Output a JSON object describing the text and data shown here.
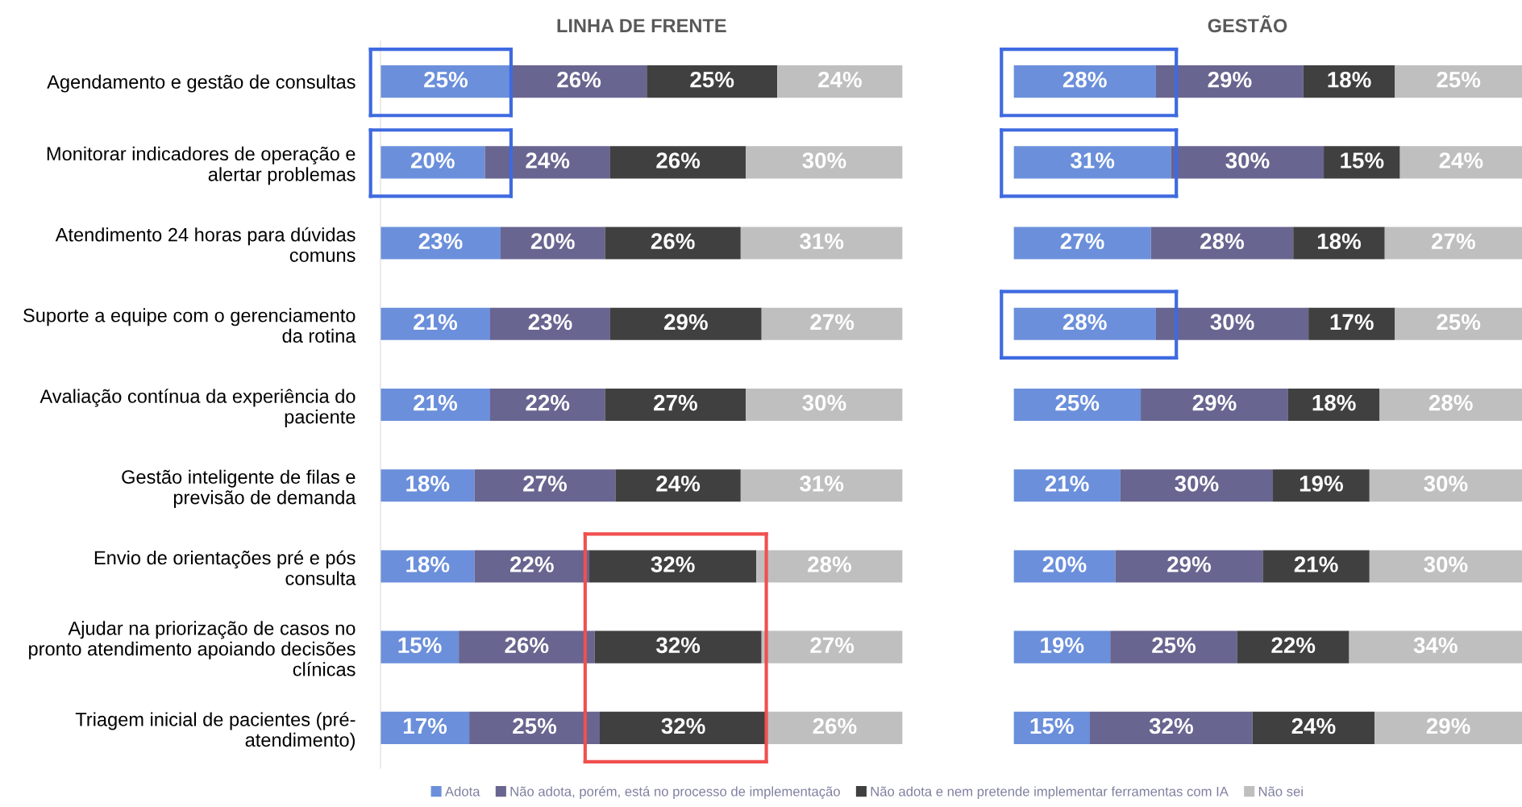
{
  "chart_data": [
    {
      "type": "bar",
      "orientation": "horizontal",
      "stacked": true,
      "title": "LINHA DE FRENTE",
      "xlim": [
        0,
        100
      ],
      "tick_labels": "y",
      "legend": "bottom",
      "grid": false,
      "categories": [
        "Agendamento e gestão de consultas",
        "Monitorar indicadores de operação e alertar problemas",
        "Atendimento 24 horas para dúvidas comuns",
        "Suporte a equipe com o gerenciamento da rotina",
        "Avaliação contínua da experiência do paciente",
        "Gestão inteligente de filas e previsão de demanda",
        "Envio de orientações pré e pós consulta",
        "Ajudar na priorização de casos no pronto atendimento apoiando decisões clínicas",
        "Triagem inicial de pacientes (pré-atendimento)"
      ],
      "series": [
        {
          "name": "Adota",
          "color": "#6b8fdb",
          "values": [
            25,
            20,
            23,
            21,
            21,
            18,
            18,
            15,
            17
          ],
          "value_labels": [
            "25%",
            "20%",
            "23%",
            "21%",
            "21%",
            "18%",
            "18%",
            "15%",
            "17%"
          ]
        },
        {
          "name": "Não adota, porém, está no processo de implementação",
          "color": "#686590",
          "values": [
            26,
            24,
            20,
            23,
            22,
            27,
            22,
            26,
            25
          ],
          "value_labels": [
            "26%",
            "24%",
            "20%",
            "23%",
            "22%",
            "27%",
            "22%",
            "26%",
            "25%"
          ]
        },
        {
          "name": "Não adota e nem pretende implementar ferramentas com IA",
          "color": "#404040",
          "values": [
            25,
            26,
            26,
            29,
            27,
            24,
            32,
            32,
            32
          ],
          "value_labels": [
            "25%",
            "26%",
            "26%",
            "29%",
            "27%",
            "24%",
            "32%",
            "32%",
            "32%"
          ]
        },
        {
          "name": "Não sei",
          "color": "#bfbfbf",
          "values": [
            24,
            30,
            31,
            27,
            30,
            31,
            28,
            27,
            26
          ],
          "value_labels": [
            "24%",
            "30%",
            "31%",
            "27%",
            "30%",
            "31%",
            "28%",
            "27%",
            "26%"
          ]
        }
      ]
    },
    {
      "type": "bar",
      "orientation": "horizontal",
      "stacked": true,
      "title": "GESTÃO",
      "xlim": [
        0,
        100
      ],
      "tick_labels": false,
      "grid": false,
      "categories": [
        null,
        null,
        null,
        null,
        null,
        null,
        null,
        null,
        null
      ],
      "series": [
        {
          "color": "#6b8fdb",
          "values": [
            28,
            31,
            27,
            28,
            25,
            21,
            20,
            19,
            15
          ],
          "value_labels": [
            "28%",
            "31%",
            "27%",
            "28%",
            "25%",
            "21%",
            "20%",
            "19%",
            "15%"
          ]
        },
        {
          "color": "#686590",
          "values": [
            29,
            30,
            28,
            30,
            29,
            30,
            29,
            25,
            32
          ],
          "value_labels": [
            "29%",
            "30%",
            "28%",
            "30%",
            "29%",
            "30%",
            "29%",
            "25%",
            "32%"
          ]
        },
        {
          "color": "#404040",
          "values": [
            18,
            15,
            18,
            17,
            18,
            19,
            21,
            22,
            24
          ],
          "value_labels": [
            "18%",
            "15%",
            "18%",
            "17%",
            "18%",
            "19%",
            "21%",
            "22%",
            "24%"
          ]
        },
        {
          "color": "#bfbfbf",
          "values": [
            25,
            24,
            27,
            25,
            28,
            30,
            30,
            34,
            29
          ],
          "value_labels": [
            "25%",
            "24%",
            "27%",
            "25%",
            "28%",
            "30%",
            "30%",
            "34%",
            "29%"
          ]
        }
      ]
    }
  ]
}
